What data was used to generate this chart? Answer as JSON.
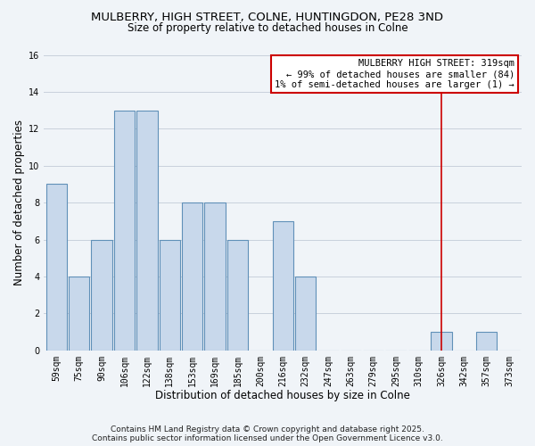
{
  "title": "MULBERRY, HIGH STREET, COLNE, HUNTINGDON, PE28 3ND",
  "subtitle": "Size of property relative to detached houses in Colne",
  "xlabel": "Distribution of detached houses by size in Colne",
  "ylabel": "Number of detached properties",
  "bar_labels": [
    "59sqm",
    "75sqm",
    "90sqm",
    "106sqm",
    "122sqm",
    "138sqm",
    "153sqm",
    "169sqm",
    "185sqm",
    "200sqm",
    "216sqm",
    "232sqm",
    "247sqm",
    "263sqm",
    "279sqm",
    "295sqm",
    "310sqm",
    "326sqm",
    "342sqm",
    "357sqm",
    "373sqm"
  ],
  "bar_values": [
    9,
    4,
    6,
    13,
    13,
    6,
    8,
    8,
    6,
    0,
    7,
    4,
    0,
    0,
    0,
    0,
    0,
    1,
    0,
    1,
    0
  ],
  "bar_color": "#c8d8eb",
  "bar_edge_color": "#6090b8",
  "bar_linewidth": 0.8,
  "grid_color": "#c8d0dc",
  "bg_color": "#f0f4f8",
  "vline_x": 17.0,
  "vline_color": "#cc0000",
  "vline_linewidth": 1.2,
  "annotation_title": "MULBERRY HIGH STREET: 319sqm",
  "annotation_line2": "← 99% of detached houses are smaller (84)",
  "annotation_line3": "1% of semi-detached houses are larger (1) →",
  "annotation_box_color": "#cc0000",
  "annotation_bg": "#ffffff",
  "ylim": [
    0,
    16
  ],
  "yticks": [
    0,
    2,
    4,
    6,
    8,
    10,
    12,
    14,
    16
  ],
  "footnote1": "Contains HM Land Registry data © Crown copyright and database right 2025.",
  "footnote2": "Contains public sector information licensed under the Open Government Licence v3.0.",
  "title_fontsize": 9.5,
  "subtitle_fontsize": 8.5,
  "axis_label_fontsize": 8.5,
  "tick_fontsize": 7,
  "annotation_fontsize": 7.5,
  "footnote_fontsize": 6.5
}
